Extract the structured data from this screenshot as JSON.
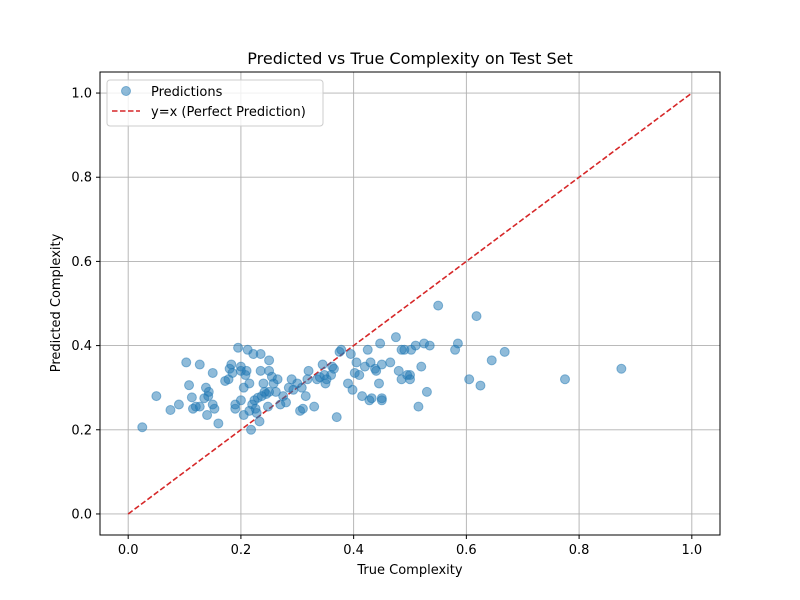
{
  "chart_data": {
    "type": "scatter",
    "title": "Predicted vs True Complexity on Test Set",
    "xlabel": "True Complexity",
    "ylabel": "Predicted Complexity",
    "xlim": [
      -0.05,
      1.05
    ],
    "ylim": [
      -0.05,
      1.05
    ],
    "xticks": [
      0.0,
      0.2,
      0.4,
      0.6,
      0.8,
      1.0
    ],
    "yticks": [
      0.0,
      0.2,
      0.4,
      0.6,
      0.8,
      1.0
    ],
    "xtick_labels": [
      "0.0",
      "0.2",
      "0.4",
      "0.6",
      "0.8",
      "1.0"
    ],
    "ytick_labels": [
      "0.0",
      "0.2",
      "0.4",
      "0.6",
      "0.8",
      "1.0"
    ],
    "grid": true,
    "legend_position": "top-left",
    "series": [
      {
        "name": "Predictions",
        "kind": "scatter",
        "color": "#1f77b4",
        "alpha": 0.5,
        "points": [
          [
            0.025,
            0.206
          ],
          [
            0.05,
            0.28
          ],
          [
            0.075,
            0.247
          ],
          [
            0.09,
            0.26
          ],
          [
            0.103,
            0.36
          ],
          [
            0.108,
            0.306
          ],
          [
            0.113,
            0.277
          ],
          [
            0.115,
            0.25
          ],
          [
            0.12,
            0.255
          ],
          [
            0.127,
            0.355
          ],
          [
            0.127,
            0.255
          ],
          [
            0.135,
            0.275
          ],
          [
            0.138,
            0.3
          ],
          [
            0.14,
            0.235
          ],
          [
            0.142,
            0.28
          ],
          [
            0.143,
            0.29
          ],
          [
            0.15,
            0.335
          ],
          [
            0.15,
            0.26
          ],
          [
            0.153,
            0.25
          ],
          [
            0.16,
            0.215
          ],
          [
            0.172,
            0.316
          ],
          [
            0.178,
            0.32
          ],
          [
            0.18,
            0.345
          ],
          [
            0.183,
            0.355
          ],
          [
            0.185,
            0.335
          ],
          [
            0.19,
            0.25
          ],
          [
            0.19,
            0.26
          ],
          [
            0.195,
            0.395
          ],
          [
            0.2,
            0.34
          ],
          [
            0.2,
            0.35
          ],
          [
            0.2,
            0.27
          ],
          [
            0.205,
            0.235
          ],
          [
            0.205,
            0.3
          ],
          [
            0.208,
            0.33
          ],
          [
            0.21,
            0.34
          ],
          [
            0.212,
            0.39
          ],
          [
            0.215,
            0.245
          ],
          [
            0.215,
            0.31
          ],
          [
            0.218,
            0.2
          ],
          [
            0.22,
            0.26
          ],
          [
            0.222,
            0.38
          ],
          [
            0.224,
            0.27
          ],
          [
            0.226,
            0.25
          ],
          [
            0.228,
            0.24
          ],
          [
            0.23,
            0.276
          ],
          [
            0.233,
            0.22
          ],
          [
            0.235,
            0.34
          ],
          [
            0.235,
            0.38
          ],
          [
            0.237,
            0.28
          ],
          [
            0.24,
            0.31
          ],
          [
            0.242,
            0.29
          ],
          [
            0.245,
            0.285
          ],
          [
            0.248,
            0.255
          ],
          [
            0.25,
            0.34
          ],
          [
            0.25,
            0.29
          ],
          [
            0.25,
            0.365
          ],
          [
            0.255,
            0.326
          ],
          [
            0.258,
            0.31
          ],
          [
            0.262,
            0.29
          ],
          [
            0.265,
            0.32
          ],
          [
            0.27,
            0.26
          ],
          [
            0.275,
            0.28
          ],
          [
            0.28,
            0.265
          ],
          [
            0.285,
            0.3
          ],
          [
            0.29,
            0.32
          ],
          [
            0.293,
            0.295
          ],
          [
            0.3,
            0.31
          ],
          [
            0.305,
            0.245
          ],
          [
            0.308,
            0.3
          ],
          [
            0.31,
            0.25
          ],
          [
            0.315,
            0.28
          ],
          [
            0.318,
            0.32
          ],
          [
            0.32,
            0.34
          ],
          [
            0.33,
            0.255
          ],
          [
            0.335,
            0.32
          ],
          [
            0.34,
            0.325
          ],
          [
            0.345,
            0.355
          ],
          [
            0.348,
            0.33
          ],
          [
            0.35,
            0.31
          ],
          [
            0.352,
            0.32
          ],
          [
            0.36,
            0.33
          ],
          [
            0.362,
            0.35
          ],
          [
            0.365,
            0.345
          ],
          [
            0.37,
            0.23
          ],
          [
            0.375,
            0.385
          ],
          [
            0.378,
            0.39
          ],
          [
            0.39,
            0.31
          ],
          [
            0.395,
            0.38
          ],
          [
            0.398,
            0.295
          ],
          [
            0.402,
            0.335
          ],
          [
            0.405,
            0.36
          ],
          [
            0.41,
            0.33
          ],
          [
            0.415,
            0.28
          ],
          [
            0.42,
            0.35
          ],
          [
            0.425,
            0.39
          ],
          [
            0.428,
            0.27
          ],
          [
            0.43,
            0.36
          ],
          [
            0.432,
            0.275
          ],
          [
            0.438,
            0.345
          ],
          [
            0.44,
            0.34
          ],
          [
            0.445,
            0.31
          ],
          [
            0.447,
            0.405
          ],
          [
            0.45,
            0.355
          ],
          [
            0.45,
            0.275
          ],
          [
            0.45,
            0.27
          ],
          [
            0.465,
            0.36
          ],
          [
            0.475,
            0.42
          ],
          [
            0.48,
            0.34
          ],
          [
            0.485,
            0.39
          ],
          [
            0.485,
            0.32
          ],
          [
            0.49,
            0.39
          ],
          [
            0.495,
            0.33
          ],
          [
            0.5,
            0.33
          ],
          [
            0.5,
            0.32
          ],
          [
            0.502,
            0.39
          ],
          [
            0.51,
            0.4
          ],
          [
            0.515,
            0.255
          ],
          [
            0.52,
            0.35
          ],
          [
            0.525,
            0.405
          ],
          [
            0.53,
            0.29
          ],
          [
            0.535,
            0.4
          ],
          [
            0.55,
            0.495
          ],
          [
            0.58,
            0.39
          ],
          [
            0.585,
            0.405
          ],
          [
            0.605,
            0.32
          ],
          [
            0.618,
            0.47
          ],
          [
            0.625,
            0.305
          ],
          [
            0.645,
            0.365
          ],
          [
            0.668,
            0.385
          ],
          [
            0.775,
            0.32
          ],
          [
            0.875,
            0.345
          ]
        ]
      },
      {
        "name": "y=x (Perfect Prediction)",
        "kind": "line",
        "color": "#d62728",
        "dashed": true,
        "points": [
          [
            0.0,
            0.0
          ],
          [
            1.0,
            1.0
          ]
        ]
      }
    ]
  }
}
